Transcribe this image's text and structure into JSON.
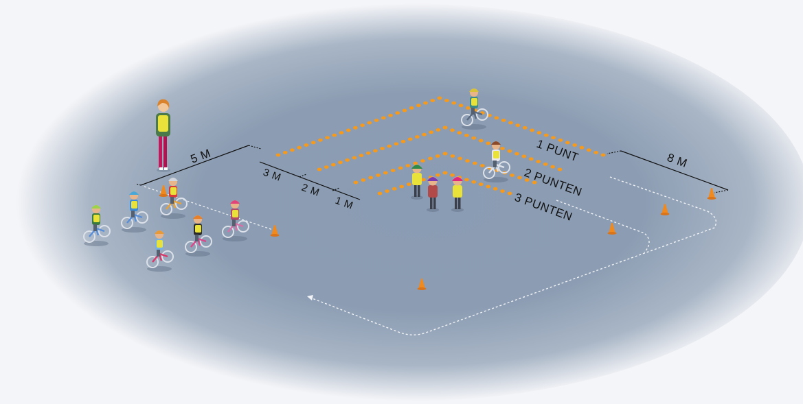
{
  "labels": {
    "width_5m": "5 M",
    "gap_3m": "3 M",
    "gap_2m": "2 M",
    "gap_1m": "1 M",
    "width_8m": "8 M",
    "zone_1": "1 PUNT",
    "zone_2": "2 PUNTEN",
    "zone_3": "3 PUNTEN"
  },
  "colors": {
    "ground_center": "#8b9db4",
    "ground_edge": "#f4f5f8",
    "cone_dot": "#f59a1c",
    "cone": "#f08a1e",
    "vest": "#e8e23a"
  }
}
